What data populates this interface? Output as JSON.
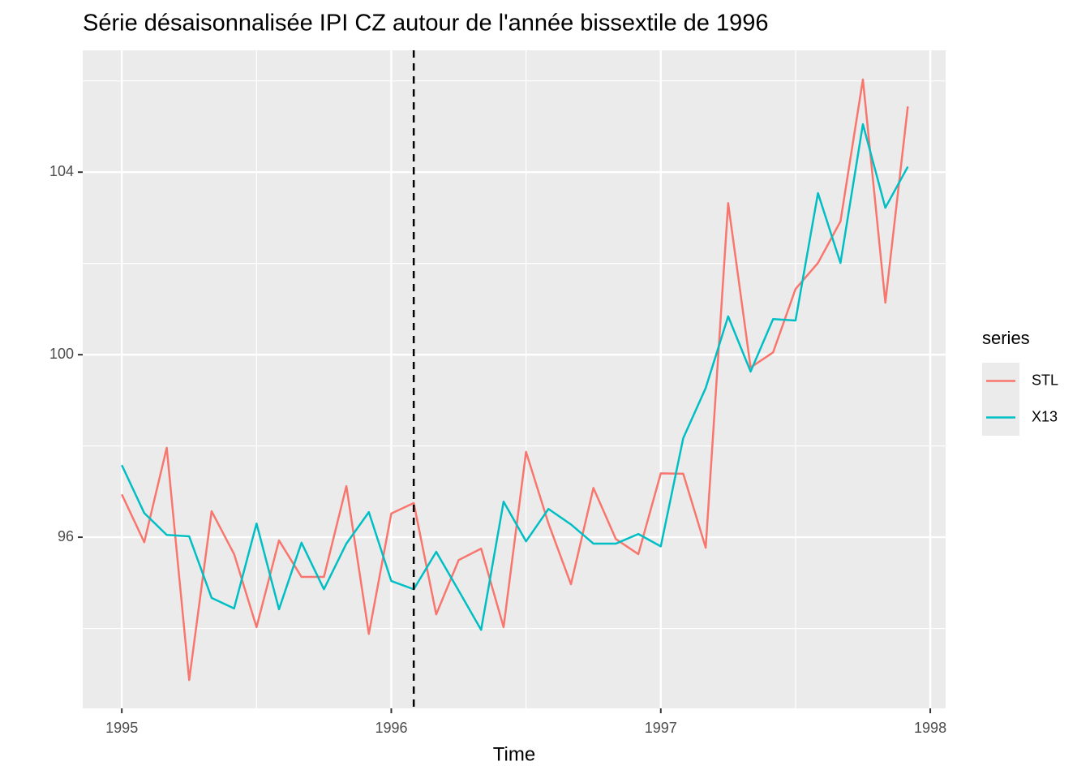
{
  "chart_data": {
    "type": "line",
    "title": "Série désaisonnalisée IPI CZ autour de l'année bissextile de 1996",
    "x_label": "Time",
    "legend_title": "series",
    "legend_position": "right",
    "grid": true,
    "xlim": [
      1994.855,
      1998.057
    ],
    "ylim": [
      92.25,
      106.67
    ],
    "xticks": [
      1995,
      1996,
      1997,
      1998
    ],
    "yticks": [
      96,
      100,
      104
    ],
    "x_minor_ticks": [
      1995.5,
      1996.5,
      1997.5
    ],
    "y_minor_ticks": [
      94,
      98,
      102,
      106
    ],
    "vline": {
      "x": 1996.0833,
      "color": "#000000",
      "dashed": true
    },
    "x": [
      1995,
      1995.0833,
      1995.1667,
      1995.25,
      1995.3333,
      1995.4167,
      1995.5,
      1995.5833,
      1995.6667,
      1995.75,
      1995.8333,
      1995.9167,
      1996,
      1996.0833,
      1996.1667,
      1996.25,
      1996.3333,
      1996.4167,
      1996.5,
      1996.5833,
      1996.6667,
      1996.75,
      1996.8333,
      1996.9167,
      1997,
      1997.0833,
      1997.1667,
      1997.25,
      1997.3333,
      1997.4167,
      1997.5,
      1997.5833,
      1997.6667,
      1997.75,
      1997.8333,
      1997.9167
    ],
    "series": [
      {
        "name": "STL",
        "color": "#f8766d",
        "values": [
          96.94,
          95.89,
          97.96,
          92.87,
          96.57,
          95.63,
          94.03,
          95.93,
          95.13,
          95.13,
          97.12,
          93.88,
          96.52,
          96.75,
          94.31,
          95.5,
          95.75,
          94.03,
          97.87,
          96.3,
          94.97,
          97.08,
          95.96,
          95.63,
          97.4,
          97.39,
          95.77,
          103.32,
          99.72,
          100.05,
          101.44,
          102.01,
          102.92,
          106.03,
          101.14,
          105.44
        ]
      },
      {
        "name": "X13",
        "color": "#00bfc4",
        "values": [
          97.58,
          96.53,
          96.05,
          96.02,
          94.67,
          94.44,
          96.3,
          94.42,
          95.88,
          94.86,
          95.86,
          96.55,
          95.04,
          94.86,
          95.68,
          94.83,
          93.97,
          96.78,
          95.91,
          96.62,
          96.28,
          95.86,
          95.86,
          96.07,
          95.8,
          98.17,
          99.27,
          100.84,
          99.63,
          100.78,
          100.75,
          103.54,
          102.01,
          105.05,
          103.22,
          104.12
        ]
      }
    ]
  }
}
